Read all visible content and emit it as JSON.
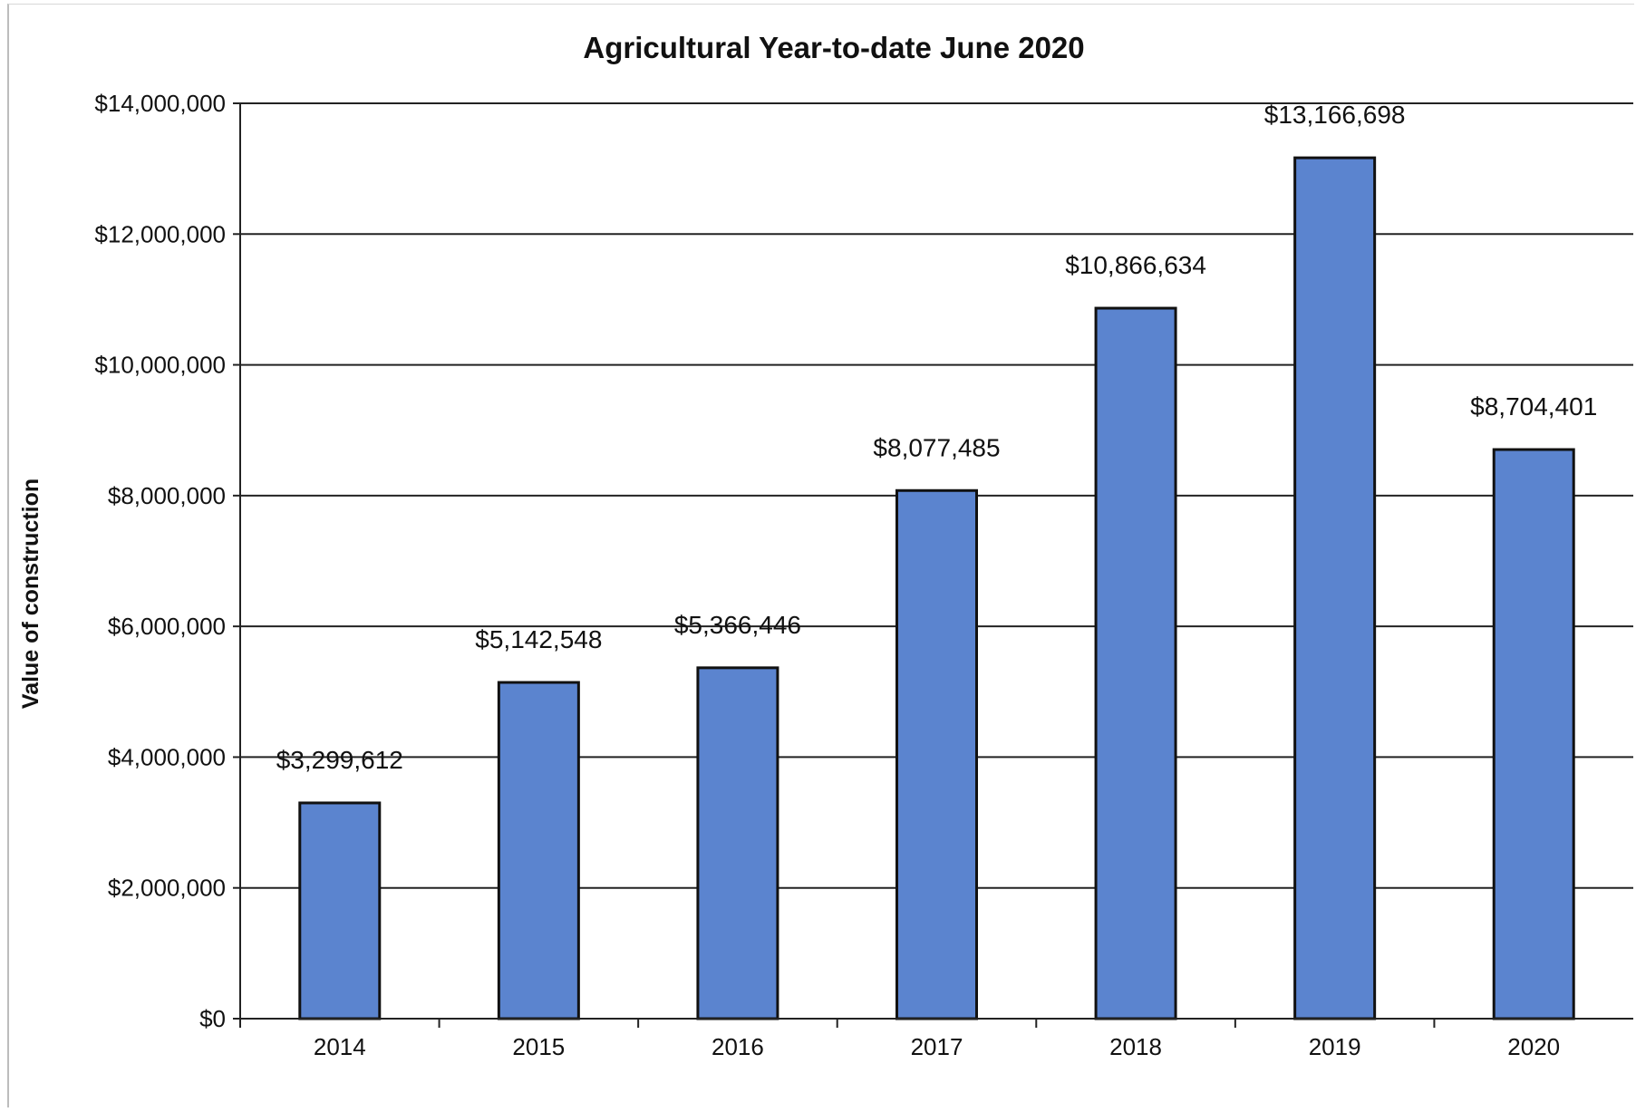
{
  "chart_data": {
    "type": "bar",
    "title": "Agricultural Year-to-date June 2020",
    "xlabel": "",
    "ylabel": "Value of construction",
    "categories": [
      "2014",
      "2015",
      "2016",
      "2017",
      "2018",
      "2019",
      "2020"
    ],
    "values": [
      3299612,
      5142548,
      5366446,
      8077485,
      10866634,
      13166698,
      8704401
    ],
    "data_labels": [
      "$3,299,612",
      "$5,142,548",
      "$5,366,446",
      "$8,077,485",
      "$10,866,634",
      "$13,166,698",
      "$8,704,401"
    ],
    "ylim": [
      0,
      14000000
    ],
    "yticks": [
      0,
      2000000,
      4000000,
      6000000,
      8000000,
      10000000,
      12000000,
      14000000
    ],
    "ytick_labels": [
      "$0",
      "$2,000,000",
      "$4,000,000",
      "$6,000,000",
      "$8,000,000",
      "$10,000,000",
      "$12,000,000",
      "$14,000,000"
    ],
    "grid": true,
    "legend": "none",
    "bar_color": "#5b84cf",
    "bar_edge_color": "#111111"
  }
}
